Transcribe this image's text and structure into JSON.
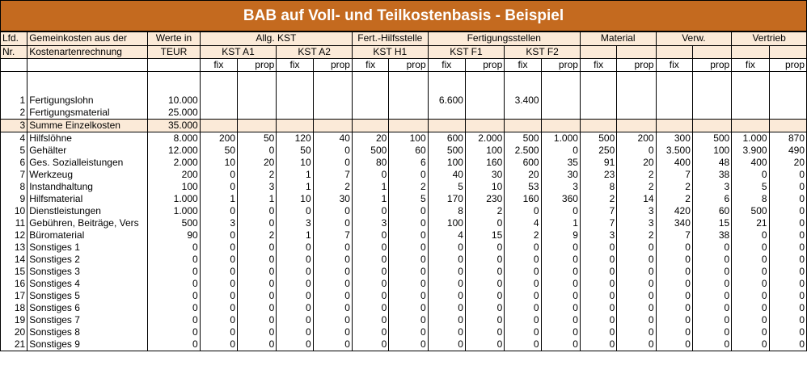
{
  "title": "BAB auf Voll- und Teilkostenbasis - Beispiel",
  "header": {
    "lfd": "Lfd.",
    "nr": "Nr.",
    "gemeinkosten_1": "Gemeinkosten aus der",
    "gemeinkosten_2": "Kostenartenrechnung",
    "werte_1": "Werte in",
    "werte_2": "TEUR",
    "groups": [
      "Allg. KST",
      "Fert.-Hilfsstelle",
      "Fertigungsstellen",
      "Material",
      "Verw.",
      "Vertrieb"
    ],
    "kst": [
      "KST A1",
      "KST A2",
      "KST H1",
      "KST F1",
      "KST F2"
    ],
    "fix": "fix",
    "prop": "prop"
  },
  "rows": [
    {
      "nr": "1",
      "name": "Fertigungslohn",
      "wert": "10.000",
      "v": [
        "",
        "",
        "",
        "",
        "",
        "",
        "6.600",
        "",
        "3.400",
        "",
        "",
        "",
        "",
        "",
        "",
        ""
      ]
    },
    {
      "nr": "2",
      "name": "Fertigungsmaterial",
      "wert": "25.000",
      "v": [
        "",
        "",
        "",
        "",
        "",
        "",
        "",
        "",
        "",
        "",
        "",
        "",
        "",
        "",
        "",
        ""
      ]
    },
    {
      "nr": "3",
      "name": "Summe Einzelkosten",
      "wert": "35.000",
      "v": [
        "",
        "",
        "",
        "",
        "",
        "",
        "",
        "",
        "",
        "",
        "",
        "",
        "",
        "",
        "",
        ""
      ]
    },
    {
      "nr": "4",
      "name": "Hilfslöhne",
      "wert": "8.000",
      "v": [
        "200",
        "50",
        "120",
        "40",
        "20",
        "100",
        "600",
        "2.000",
        "500",
        "1.000",
        "500",
        "200",
        "300",
        "500",
        "1.000",
        "870"
      ]
    },
    {
      "nr": "5",
      "name": "Gehälter",
      "wert": "12.000",
      "v": [
        "50",
        "0",
        "50",
        "0",
        "500",
        "60",
        "500",
        "100",
        "2.500",
        "0",
        "250",
        "0",
        "3.500",
        "100",
        "3.900",
        "490"
      ]
    },
    {
      "nr": "6",
      "name": "Ges. Sozialleistungen",
      "wert": "2.000",
      "v": [
        "10",
        "20",
        "10",
        "0",
        "80",
        "6",
        "100",
        "160",
        "600",
        "35",
        "91",
        "20",
        "400",
        "48",
        "400",
        "20"
      ]
    },
    {
      "nr": "7",
      "name": "Werkzeug",
      "wert": "200",
      "v": [
        "0",
        "2",
        "1",
        "7",
        "0",
        "0",
        "40",
        "30",
        "20",
        "30",
        "23",
        "2",
        "7",
        "38",
        "0",
        "0"
      ]
    },
    {
      "nr": "8",
      "name": "Instandhaltung",
      "wert": "100",
      "v": [
        "0",
        "3",
        "1",
        "2",
        "1",
        "2",
        "5",
        "10",
        "53",
        "3",
        "8",
        "2",
        "2",
        "3",
        "5",
        "0"
      ]
    },
    {
      "nr": "9",
      "name": "Hilfsmaterial",
      "wert": "1.000",
      "v": [
        "1",
        "1",
        "10",
        "30",
        "1",
        "5",
        "170",
        "230",
        "160",
        "360",
        "2",
        "14",
        "2",
        "6",
        "8",
        "0"
      ]
    },
    {
      "nr": "10",
      "name": "Dienstleistungen",
      "wert": "1.000",
      "v": [
        "0",
        "0",
        "0",
        "0",
        "0",
        "0",
        "8",
        "2",
        "0",
        "0",
        "7",
        "3",
        "420",
        "60",
        "500",
        "0"
      ]
    },
    {
      "nr": "11",
      "name": "Gebühren, Beiträge, Vers",
      "wert": "500",
      "v": [
        "3",
        "0",
        "3",
        "0",
        "3",
        "0",
        "100",
        "0",
        "4",
        "1",
        "7",
        "3",
        "340",
        "15",
        "21",
        "0"
      ]
    },
    {
      "nr": "12",
      "name": "Büromaterial",
      "wert": "90",
      "v": [
        "0",
        "2",
        "1",
        "7",
        "0",
        "0",
        "4",
        "15",
        "2",
        "9",
        "3",
        "2",
        "7",
        "38",
        "0",
        "0"
      ]
    },
    {
      "nr": "13",
      "name": "Sonstiges 1",
      "wert": "0",
      "v": [
        "0",
        "0",
        "0",
        "0",
        "0",
        "0",
        "0",
        "0",
        "0",
        "0",
        "0",
        "0",
        "0",
        "0",
        "0",
        "0"
      ]
    },
    {
      "nr": "14",
      "name": "Sonstiges 2",
      "wert": "0",
      "v": [
        "0",
        "0",
        "0",
        "0",
        "0",
        "0",
        "0",
        "0",
        "0",
        "0",
        "0",
        "0",
        "0",
        "0",
        "0",
        "0"
      ]
    },
    {
      "nr": "15",
      "name": "Sonstiges 3",
      "wert": "0",
      "v": [
        "0",
        "0",
        "0",
        "0",
        "0",
        "0",
        "0",
        "0",
        "0",
        "0",
        "0",
        "0",
        "0",
        "0",
        "0",
        "0"
      ]
    },
    {
      "nr": "16",
      "name": "Sonstiges 4",
      "wert": "0",
      "v": [
        "0",
        "0",
        "0",
        "0",
        "0",
        "0",
        "0",
        "0",
        "0",
        "0",
        "0",
        "0",
        "0",
        "0",
        "0",
        "0"
      ]
    },
    {
      "nr": "17",
      "name": "Sonstiges 5",
      "wert": "0",
      "v": [
        "0",
        "0",
        "0",
        "0",
        "0",
        "0",
        "0",
        "0",
        "0",
        "0",
        "0",
        "0",
        "0",
        "0",
        "0",
        "0"
      ]
    },
    {
      "nr": "18",
      "name": "Sonstiges 6",
      "wert": "0",
      "v": [
        "0",
        "0",
        "0",
        "0",
        "0",
        "0",
        "0",
        "0",
        "0",
        "0",
        "0",
        "0",
        "0",
        "0",
        "0",
        "0"
      ]
    },
    {
      "nr": "19",
      "name": "Sonstiges 7",
      "wert": "0",
      "v": [
        "0",
        "0",
        "0",
        "0",
        "0",
        "0",
        "0",
        "0",
        "0",
        "0",
        "0",
        "0",
        "0",
        "0",
        "0",
        "0"
      ]
    },
    {
      "nr": "20",
      "name": "Sonstiges 8",
      "wert": "0",
      "v": [
        "0",
        "0",
        "0",
        "0",
        "0",
        "0",
        "0",
        "0",
        "0",
        "0",
        "0",
        "0",
        "0",
        "0",
        "0",
        "0"
      ]
    },
    {
      "nr": "21",
      "name": "Sonstiges 9",
      "wert": "0",
      "v": [
        "0",
        "0",
        "0",
        "0",
        "0",
        "0",
        "0",
        "0",
        "0",
        "0",
        "0",
        "0",
        "0",
        "0",
        "0",
        "0"
      ]
    }
  ]
}
